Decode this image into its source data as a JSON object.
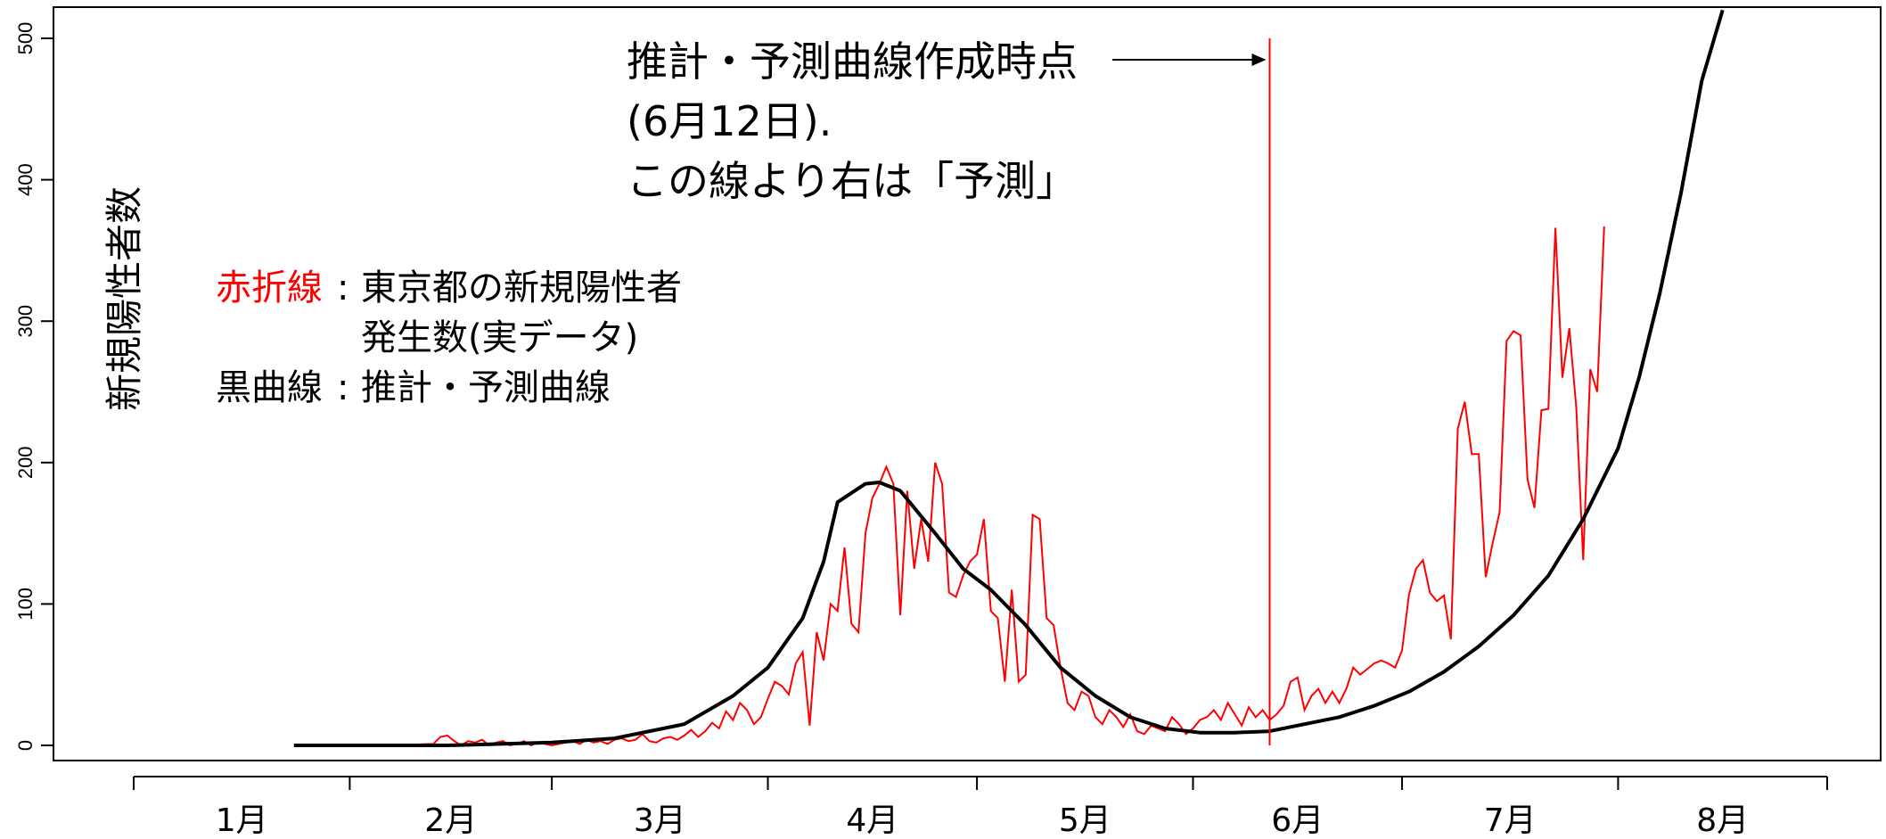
{
  "chart_data": {
    "type": "line",
    "title": "",
    "ylabel": "新規陽性者数",
    "xlabel": "",
    "ylim": [
      0,
      500
    ],
    "y_ticks": [
      0,
      100,
      200,
      300,
      400,
      500
    ],
    "x_range": [
      "2020-01-01",
      "2020-08-31"
    ],
    "month_labels": [
      {
        "label": "1月",
        "date": "2020-01-01"
      },
      {
        "label": "2月",
        "date": "2020-02-01"
      },
      {
        "label": "3月",
        "date": "2020-03-01"
      },
      {
        "label": "4月",
        "date": "2020-04-01"
      },
      {
        "label": "5月",
        "date": "2020-05-01"
      },
      {
        "label": "6月",
        "date": "2020-06-01"
      },
      {
        "label": "7月",
        "date": "2020-07-01"
      },
      {
        "label": "8月",
        "date": "2020-08-01"
      }
    ],
    "grid": false,
    "legend": {
      "placement": "upper-left",
      "red_name": "赤折線",
      "sep1": ":",
      "red_line1": "東京都の新規陽性者",
      "red_line2": "発生数(実データ)",
      "black_name": "黒曲線",
      "sep2": ":",
      "black_desc": "推計・予測曲線"
    },
    "annotation": {
      "line1": "推計・予測曲線作成時点",
      "line2": "(6月12日).",
      "line3": "この線より右は「予測」",
      "date": "2020-06-12",
      "line_top_value": 500
    },
    "colors": {
      "actual": "#ff0000",
      "fit": "#000000",
      "marker": "#ff0000"
    },
    "series": [
      {
        "name": "東京都の新規陽性者発生数(実データ)",
        "color": "#ff0000",
        "points": [
          [
            "2020-01-24",
            0
          ],
          [
            "2020-01-31",
            0
          ],
          [
            "2020-02-07",
            0
          ],
          [
            "2020-02-13",
            1
          ],
          [
            "2020-02-14",
            6
          ],
          [
            "2020-02-15",
            7
          ],
          [
            "2020-02-16",
            3
          ],
          [
            "2020-02-17",
            0
          ],
          [
            "2020-02-18",
            3
          ],
          [
            "2020-02-19",
            2
          ],
          [
            "2020-02-20",
            4
          ],
          [
            "2020-02-21",
            0
          ],
          [
            "2020-02-22",
            2
          ],
          [
            "2020-02-23",
            3
          ],
          [
            "2020-02-24",
            0
          ],
          [
            "2020-02-25",
            1
          ],
          [
            "2020-02-26",
            3
          ],
          [
            "2020-02-27",
            0
          ],
          [
            "2020-02-28",
            2
          ],
          [
            "2020-02-29",
            1
          ],
          [
            "2020-03-01",
            0
          ],
          [
            "2020-03-02",
            1
          ],
          [
            "2020-03-03",
            2
          ],
          [
            "2020-03-04",
            3
          ],
          [
            "2020-03-05",
            1
          ],
          [
            "2020-03-06",
            4
          ],
          [
            "2020-03-07",
            2
          ],
          [
            "2020-03-08",
            3
          ],
          [
            "2020-03-09",
            1
          ],
          [
            "2020-03-10",
            4
          ],
          [
            "2020-03-11",
            5
          ],
          [
            "2020-03-12",
            3
          ],
          [
            "2020-03-13",
            4
          ],
          [
            "2020-03-14",
            8
          ],
          [
            "2020-03-15",
            3
          ],
          [
            "2020-03-16",
            2
          ],
          [
            "2020-03-17",
            5
          ],
          [
            "2020-03-18",
            6
          ],
          [
            "2020-03-19",
            4
          ],
          [
            "2020-03-20",
            7
          ],
          [
            "2020-03-21",
            11
          ],
          [
            "2020-03-22",
            6
          ],
          [
            "2020-03-23",
            10
          ],
          [
            "2020-03-24",
            16
          ],
          [
            "2020-03-25",
            12
          ],
          [
            "2020-03-26",
            24
          ],
          [
            "2020-03-27",
            18
          ],
          [
            "2020-03-28",
            30
          ],
          [
            "2020-03-29",
            25
          ],
          [
            "2020-03-30",
            15
          ],
          [
            "2020-03-31",
            20
          ],
          [
            "2020-04-01",
            33
          ],
          [
            "2020-04-02",
            45
          ],
          [
            "2020-04-03",
            42
          ],
          [
            "2020-04-04",
            36
          ],
          [
            "2020-04-05",
            58
          ],
          [
            "2020-04-06",
            66
          ],
          [
            "2020-04-07",
            14
          ],
          [
            "2020-04-08",
            80
          ],
          [
            "2020-04-09",
            60
          ],
          [
            "2020-04-10",
            100
          ],
          [
            "2020-04-11",
            95
          ],
          [
            "2020-04-12",
            140
          ],
          [
            "2020-04-13",
            86
          ],
          [
            "2020-04-14",
            80
          ],
          [
            "2020-04-15",
            150
          ],
          [
            "2020-04-16",
            175
          ],
          [
            "2020-04-17",
            185
          ],
          [
            "2020-04-18",
            197
          ],
          [
            "2020-04-19",
            185
          ],
          [
            "2020-04-20",
            92
          ],
          [
            "2020-04-21",
            180
          ],
          [
            "2020-04-22",
            125
          ],
          [
            "2020-04-23",
            160
          ],
          [
            "2020-04-24",
            130
          ],
          [
            "2020-04-25",
            200
          ],
          [
            "2020-04-26",
            185
          ],
          [
            "2020-04-27",
            108
          ],
          [
            "2020-04-28",
            105
          ],
          [
            "2020-04-29",
            120
          ],
          [
            "2020-04-30",
            130
          ],
          [
            "2020-05-01",
            135
          ],
          [
            "2020-05-02",
            160
          ],
          [
            "2020-05-03",
            95
          ],
          [
            "2020-05-04",
            90
          ],
          [
            "2020-05-05",
            45
          ],
          [
            "2020-05-06",
            110
          ],
          [
            "2020-05-07",
            45
          ],
          [
            "2020-05-08",
            50
          ],
          [
            "2020-05-09",
            163
          ],
          [
            "2020-05-10",
            160
          ],
          [
            "2020-05-11",
            90
          ],
          [
            "2020-05-12",
            85
          ],
          [
            "2020-05-13",
            55
          ],
          [
            "2020-05-14",
            30
          ],
          [
            "2020-05-15",
            25
          ],
          [
            "2020-05-16",
            38
          ],
          [
            "2020-05-17",
            35
          ],
          [
            "2020-05-18",
            20
          ],
          [
            "2020-05-19",
            15
          ],
          [
            "2020-05-20",
            25
          ],
          [
            "2020-05-21",
            20
          ],
          [
            "2020-05-22",
            13
          ],
          [
            "2020-05-23",
            22
          ],
          [
            "2020-05-24",
            10
          ],
          [
            "2020-05-25",
            8
          ],
          [
            "2020-05-26",
            14
          ],
          [
            "2020-05-27",
            12
          ],
          [
            "2020-05-28",
            10
          ],
          [
            "2020-05-29",
            20
          ],
          [
            "2020-05-30",
            15
          ],
          [
            "2020-05-31",
            8
          ],
          [
            "2020-06-01",
            12
          ],
          [
            "2020-06-02",
            18
          ],
          [
            "2020-06-03",
            20
          ],
          [
            "2020-06-04",
            25
          ],
          [
            "2020-06-05",
            18
          ],
          [
            "2020-06-06",
            30
          ],
          [
            "2020-06-07",
            22
          ],
          [
            "2020-06-08",
            14
          ],
          [
            "2020-06-09",
            27
          ],
          [
            "2020-06-10",
            20
          ],
          [
            "2020-06-11",
            25
          ],
          [
            "2020-06-12",
            18
          ],
          [
            "2020-06-13",
            22
          ],
          [
            "2020-06-14",
            28
          ],
          [
            "2020-06-15",
            45
          ],
          [
            "2020-06-16",
            48
          ],
          [
            "2020-06-17",
            25
          ],
          [
            "2020-06-18",
            35
          ],
          [
            "2020-06-19",
            40
          ],
          [
            "2020-06-20",
            30
          ],
          [
            "2020-06-21",
            38
          ],
          [
            "2020-06-22",
            30
          ],
          [
            "2020-06-23",
            40
          ],
          [
            "2020-06-24",
            55
          ],
          [
            "2020-06-25",
            50
          ],
          [
            "2020-06-26",
            54
          ],
          [
            "2020-06-27",
            58
          ],
          [
            "2020-06-28",
            60
          ],
          [
            "2020-06-29",
            58
          ],
          [
            "2020-06-30",
            55
          ],
          [
            "2020-07-01",
            67
          ],
          [
            "2020-07-02",
            107
          ],
          [
            "2020-07-03",
            125
          ],
          [
            "2020-07-04",
            131
          ],
          [
            "2020-07-05",
            108
          ],
          [
            "2020-07-06",
            102
          ],
          [
            "2020-07-07",
            106
          ],
          [
            "2020-07-08",
            75
          ],
          [
            "2020-07-09",
            224
          ],
          [
            "2020-07-10",
            243
          ],
          [
            "2020-07-11",
            206
          ],
          [
            "2020-07-12",
            206
          ],
          [
            "2020-07-13",
            119
          ],
          [
            "2020-07-14",
            143
          ],
          [
            "2020-07-15",
            165
          ],
          [
            "2020-07-16",
            286
          ],
          [
            "2020-07-17",
            293
          ],
          [
            "2020-07-18",
            290
          ],
          [
            "2020-07-19",
            188
          ],
          [
            "2020-07-20",
            168
          ],
          [
            "2020-07-21",
            237
          ],
          [
            "2020-07-22",
            238
          ],
          [
            "2020-07-23",
            366
          ],
          [
            "2020-07-24",
            260
          ],
          [
            "2020-07-25",
            295
          ],
          [
            "2020-07-26",
            239
          ],
          [
            "2020-07-27",
            131
          ],
          [
            "2020-07-28",
            266
          ],
          [
            "2020-07-29",
            250
          ],
          [
            "2020-07-30",
            367
          ]
        ]
      },
      {
        "name": "推計・予測曲線",
        "color": "#000000",
        "points": [
          [
            "2020-01-24",
            0
          ],
          [
            "2020-02-15",
            0
          ],
          [
            "2020-03-01",
            2
          ],
          [
            "2020-03-10",
            5
          ],
          [
            "2020-03-20",
            15
          ],
          [
            "2020-03-27",
            35
          ],
          [
            "2020-04-01",
            55
          ],
          [
            "2020-04-06",
            90
          ],
          [
            "2020-04-09",
            130
          ],
          [
            "2020-04-11",
            172
          ],
          [
            "2020-04-15",
            185
          ],
          [
            "2020-04-17",
            186
          ],
          [
            "2020-04-20",
            180
          ],
          [
            "2020-04-25",
            150
          ],
          [
            "2020-04-29",
            125
          ],
          [
            "2020-05-03",
            110
          ],
          [
            "2020-05-08",
            85
          ],
          [
            "2020-05-13",
            55
          ],
          [
            "2020-05-18",
            35
          ],
          [
            "2020-05-23",
            20
          ],
          [
            "2020-05-28",
            12
          ],
          [
            "2020-06-02",
            9
          ],
          [
            "2020-06-07",
            9
          ],
          [
            "2020-06-12",
            10
          ],
          [
            "2020-06-17",
            15
          ],
          [
            "2020-06-22",
            20
          ],
          [
            "2020-06-27",
            28
          ],
          [
            "2020-07-02",
            38
          ],
          [
            "2020-07-07",
            52
          ],
          [
            "2020-07-12",
            70
          ],
          [
            "2020-07-17",
            92
          ],
          [
            "2020-07-22",
            120
          ],
          [
            "2020-07-27",
            160
          ],
          [
            "2020-08-01",
            210
          ],
          [
            "2020-08-04",
            260
          ],
          [
            "2020-08-07",
            320
          ],
          [
            "2020-08-10",
            390
          ],
          [
            "2020-08-13",
            470
          ],
          [
            "2020-08-16",
            520
          ]
        ]
      }
    ]
  }
}
